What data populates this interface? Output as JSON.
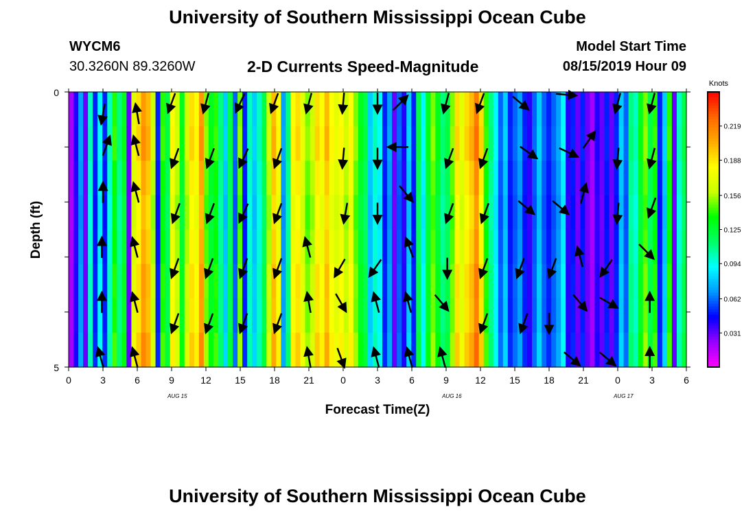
{
  "header": {
    "title_top": "University of Southern Mississippi Ocean Cube",
    "title_bottom": "University of Southern Mississippi Ocean Cube",
    "station_id": "WYCM6",
    "station_coords": "30.3260N 89.3260W",
    "model_start_label": "Model Start Time",
    "model_start_time": "08/15/2019 Hour 09"
  },
  "chart_data": {
    "type": "heatmap",
    "title": "2-D Currents Speed-Magnitude",
    "xlabel": "Forecast Time(Z)",
    "ylabel": "Depth (ft)",
    "x_ticks": [
      "0",
      "3",
      "6",
      "9",
      "12",
      "15",
      "18",
      "21",
      "0",
      "3",
      "6",
      "9",
      "12",
      "15",
      "18",
      "21",
      "0",
      "3",
      "6"
    ],
    "date_labels": [
      "AUG 15",
      "AUG 16",
      "AUG 17"
    ],
    "y_ticks": [
      "0",
      "5"
    ],
    "ylim": [
      0,
      5
    ],
    "xlim_hours": [
      0,
      54
    ],
    "colorbar": {
      "unit": "Knots",
      "ticks": [
        "0.219",
        "0.188",
        "0.156",
        "0.125",
        "0.094",
        "0.062",
        "0.031"
      ],
      "tick_values": [
        0.219,
        0.188,
        0.156,
        0.125,
        0.094,
        0.062,
        0.031
      ],
      "range": [
        0,
        0.25
      ],
      "colors": [
        "#ff00ff",
        "#9900ff",
        "#0000ff",
        "#0099ff",
        "#00ffff",
        "#00ff66",
        "#00ff00",
        "#ccff00",
        "#ffff00",
        "#ffaa00",
        "#ff6600",
        "#ff0000"
      ]
    },
    "speed_profile_knots": [
      0.02,
      0.04,
      0.07,
      0.03,
      0.1,
      0.05,
      0.09,
      0.05,
      0.1,
      0.14,
      0.11,
      0.13,
      0.03,
      0.17,
      0.19,
      0.21,
      0.2,
      0.16,
      0.05,
      0.14,
      0.12,
      0.18,
      0.16,
      0.13,
      0.16,
      0.19,
      0.18,
      0.21,
      0.15,
      0.13,
      0.14,
      0.11,
      0.08,
      0.12,
      0.06,
      0.15,
      0.05,
      0.1,
      0.08,
      0.1,
      0.12,
      0.16,
      0.2,
      0.18,
      0.07,
      0.11,
      0.18,
      0.19,
      0.17,
      0.15,
      0.16,
      0.19,
      0.18,
      0.2,
      0.18,
      0.17,
      0.18,
      0.16,
      0.18,
      0.15,
      0.13,
      0.12,
      0.08,
      0.1,
      0.09,
      0.05,
      0.07,
      0.03,
      0.06,
      0.04,
      0.08,
      0.05,
      0.12,
      0.09,
      0.13,
      0.15,
      0.13,
      0.11,
      0.12,
      0.15,
      0.19,
      0.17,
      0.19,
      0.2,
      0.22,
      0.19,
      0.14,
      0.11,
      0.09,
      0.06,
      0.08,
      0.05,
      0.06,
      0.07,
      0.05,
      0.04,
      0.06,
      0.08,
      0.06,
      0.05,
      0.06,
      0.07,
      0.09,
      0.04,
      0.05,
      0.03,
      0.05,
      0.03,
      0.02,
      0.04,
      0.03,
      0.05,
      0.03,
      0.05,
      0.08,
      0.06,
      0.11,
      0.1,
      0.13,
      0.15,
      0.12,
      0.14,
      0.05,
      0.08,
      0.14,
      0.03,
      0.1,
      0.12
    ],
    "depth_layer_factors": [
      1.0,
      1.02,
      0.98,
      0.95,
      0.97,
      1.0,
      0.99,
      1.03
    ],
    "vectors": [
      {
        "hour": 3,
        "depth": 0.4,
        "dir": 190
      },
      {
        "hour": 6,
        "depth": 0.4,
        "dir": 350
      },
      {
        "hour": 9,
        "depth": 0.2,
        "dir": 200
      },
      {
        "hour": 12,
        "depth": 0.2,
        "dir": 195
      },
      {
        "hour": 15,
        "depth": 0.2,
        "dir": 205
      },
      {
        "hour": 18,
        "depth": 0.2,
        "dir": 200
      },
      {
        "hour": 21,
        "depth": 0.2,
        "dir": 195
      },
      {
        "hour": 24,
        "depth": 0.2,
        "dir": 185
      },
      {
        "hour": 27,
        "depth": 0.2,
        "dir": 180
      },
      {
        "hour": 29,
        "depth": 0.2,
        "dir": 45
      },
      {
        "hour": 33,
        "depth": 0.2,
        "dir": 195
      },
      {
        "hour": 36,
        "depth": 0.2,
        "dir": 200
      },
      {
        "hour": 39.5,
        "depth": 0.2,
        "dir": 130
      },
      {
        "hour": 43.5,
        "depth": 0.05,
        "dir": 95
      },
      {
        "hour": 48,
        "depth": 0.2,
        "dir": 195
      },
      {
        "hour": 51,
        "depth": 0.2,
        "dir": 195
      },
      {
        "hour": 3.3,
        "depth": 0.98,
        "dir": 20
      },
      {
        "hour": 5.9,
        "depth": 0.98,
        "dir": 345
      },
      {
        "hour": 9.3,
        "depth": 1.2,
        "dir": 200
      },
      {
        "hour": 12.4,
        "depth": 1.2,
        "dir": 200
      },
      {
        "hour": 15.3,
        "depth": 1.2,
        "dir": 205
      },
      {
        "hour": 18.3,
        "depth": 1.2,
        "dir": 200
      },
      {
        "hour": 24,
        "depth": 1.2,
        "dir": 185
      },
      {
        "hour": 27,
        "depth": 1.2,
        "dir": 180
      },
      {
        "hour": 28.8,
        "depth": 1.0,
        "dir": 270
      },
      {
        "hour": 33.3,
        "depth": 1.2,
        "dir": 200
      },
      {
        "hour": 36.3,
        "depth": 1.2,
        "dir": 200
      },
      {
        "hour": 40.2,
        "depth": 1.1,
        "dir": 125
      },
      {
        "hour": 43.7,
        "depth": 1.1,
        "dir": 115
      },
      {
        "hour": 45.5,
        "depth": 0.87,
        "dir": 35
      },
      {
        "hour": 48,
        "depth": 1.2,
        "dir": 185
      },
      {
        "hour": 51,
        "depth": 1.2,
        "dir": 195
      },
      {
        "hour": 3.0,
        "depth": 1.83,
        "dir": 0
      },
      {
        "hour": 5.9,
        "depth": 1.83,
        "dir": 345
      },
      {
        "hour": 9.4,
        "depth": 2.2,
        "dir": 200
      },
      {
        "hour": 12.4,
        "depth": 2.2,
        "dir": 200
      },
      {
        "hour": 15.3,
        "depth": 2.2,
        "dir": 205
      },
      {
        "hour": 18.3,
        "depth": 2.2,
        "dir": 200
      },
      {
        "hour": 24.2,
        "depth": 2.2,
        "dir": 190
      },
      {
        "hour": 27,
        "depth": 2.2,
        "dir": 180
      },
      {
        "hour": 29.5,
        "depth": 1.85,
        "dir": 140
      },
      {
        "hour": 33.3,
        "depth": 2.2,
        "dir": 200
      },
      {
        "hour": 36.4,
        "depth": 2.2,
        "dir": 200
      },
      {
        "hour": 40,
        "depth": 2.1,
        "dir": 130
      },
      {
        "hour": 43,
        "depth": 2.1,
        "dir": 130
      },
      {
        "hour": 45,
        "depth": 1.85,
        "dir": 15
      },
      {
        "hour": 48,
        "depth": 2.2,
        "dir": 185
      },
      {
        "hour": 51,
        "depth": 2.1,
        "dir": 200
      },
      {
        "hour": 2.9,
        "depth": 2.83,
        "dir": 0
      },
      {
        "hour": 5.8,
        "depth": 2.83,
        "dir": 345
      },
      {
        "hour": 9.3,
        "depth": 3.2,
        "dir": 200
      },
      {
        "hour": 12.3,
        "depth": 3.2,
        "dir": 200
      },
      {
        "hour": 15.3,
        "depth": 3.2,
        "dir": 200
      },
      {
        "hour": 18.3,
        "depth": 3.2,
        "dir": 200
      },
      {
        "hour": 20.9,
        "depth": 2.83,
        "dir": 345
      },
      {
        "hour": 23.7,
        "depth": 3.2,
        "dir": 210
      },
      {
        "hour": 26.8,
        "depth": 3.2,
        "dir": 215
      },
      {
        "hour": 29.8,
        "depth": 2.83,
        "dir": 340
      },
      {
        "hour": 33.1,
        "depth": 3.2,
        "dir": 180
      },
      {
        "hour": 36.3,
        "depth": 3.2,
        "dir": 200
      },
      {
        "hour": 39.5,
        "depth": 3.2,
        "dir": 200
      },
      {
        "hour": 42.3,
        "depth": 3.2,
        "dir": 200
      },
      {
        "hour": 44.7,
        "depth": 3.0,
        "dir": 345
      },
      {
        "hour": 47.0,
        "depth": 3.2,
        "dir": 215
      },
      {
        "hour": 50.5,
        "depth": 2.9,
        "dir": 135
      },
      {
        "hour": 2.9,
        "depth": 3.83,
        "dir": 0
      },
      {
        "hour": 5.8,
        "depth": 3.83,
        "dir": 345
      },
      {
        "hour": 9.3,
        "depth": 4.2,
        "dir": 200
      },
      {
        "hour": 12.3,
        "depth": 4.2,
        "dir": 200
      },
      {
        "hour": 15.3,
        "depth": 4.2,
        "dir": 200
      },
      {
        "hour": 18.3,
        "depth": 4.2,
        "dir": 200
      },
      {
        "hour": 21.0,
        "depth": 3.83,
        "dir": 350
      },
      {
        "hour": 23.8,
        "depth": 3.83,
        "dir": 150
      },
      {
        "hour": 26.9,
        "depth": 3.83,
        "dir": 345
      },
      {
        "hour": 29.7,
        "depth": 3.83,
        "dir": 345
      },
      {
        "hour": 32.6,
        "depth": 3.83,
        "dir": 140
      },
      {
        "hour": 36.3,
        "depth": 4.2,
        "dir": 200
      },
      {
        "hour": 39.8,
        "depth": 4.2,
        "dir": 200
      },
      {
        "hour": 42.0,
        "depth": 4.2,
        "dir": 180
      },
      {
        "hour": 44.7,
        "depth": 3.83,
        "dir": 140
      },
      {
        "hour": 47.2,
        "depth": 3.83,
        "dir": 120
      },
      {
        "hour": 50.8,
        "depth": 3.83,
        "dir": 0
      },
      {
        "hour": 2.8,
        "depth": 4.83,
        "dir": 345
      },
      {
        "hour": 5.8,
        "depth": 4.83,
        "dir": 345
      },
      {
        "hour": 21.0,
        "depth": 4.83,
        "dir": 350
      },
      {
        "hour": 23.8,
        "depth": 4.83,
        "dir": 160
      },
      {
        "hour": 26.9,
        "depth": 4.83,
        "dir": 345
      },
      {
        "hour": 29.8,
        "depth": 4.83,
        "dir": 345
      },
      {
        "hour": 32.7,
        "depth": 4.83,
        "dir": 345
      },
      {
        "hour": 44.0,
        "depth": 4.85,
        "dir": 130
      },
      {
        "hour": 47.1,
        "depth": 4.85,
        "dir": 130
      },
      {
        "hour": 50.8,
        "depth": 4.83,
        "dir": 0
      }
    ]
  }
}
